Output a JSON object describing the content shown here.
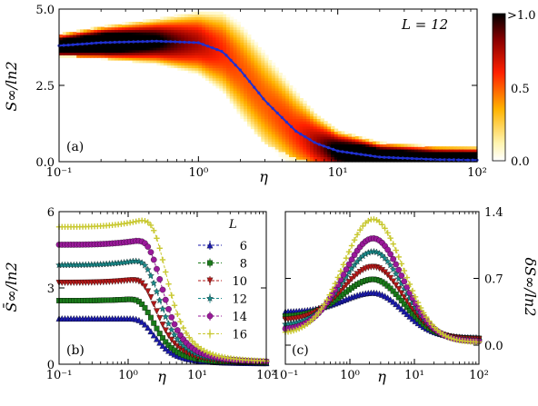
{
  "chart_data": [
    {
      "type": "heatmap",
      "panel_label": "(a)",
      "annotation": "L = 12",
      "xlabel": "η",
      "ylabel": "S∞/ln2",
      "xscale": "log",
      "xlim": [
        0.1,
        100
      ],
      "ylim": [
        0,
        5
      ],
      "x_tick_labels": [
        "10⁻¹",
        "10⁰",
        "10¹",
        "10²"
      ],
      "y_tick_labels": [
        "0.0",
        "2.5",
        "5.0"
      ],
      "colorbar": {
        "ticks": [
          "0.0",
          "0.5",
          ">1.0"
        ],
        "range": [
          0,
          1
        ]
      },
      "mean_curve": {
        "x": [
          0.1,
          0.2,
          0.5,
          1.0,
          1.5,
          2.0,
          3.0,
          5.0,
          7.0,
          10.0,
          20.0,
          50.0,
          100.0
        ],
        "y": [
          3.8,
          3.9,
          3.95,
          3.9,
          3.6,
          3.0,
          2.0,
          1.0,
          0.6,
          0.35,
          0.15,
          0.07,
          0.05
        ]
      },
      "density": {
        "x": [
          0.1,
          0.2,
          0.5,
          1.0,
          1.5,
          2.0,
          3.0,
          5.0,
          7.0,
          10.0,
          20.0,
          50.0,
          100.0
        ],
        "upper_edge": [
          4.3,
          4.5,
          4.7,
          4.9,
          4.9,
          4.6,
          3.8,
          2.8,
          2.0,
          1.4,
          1.0,
          0.9,
          0.9
        ],
        "lower_edge": [
          3.5,
          3.4,
          3.2,
          2.8,
          2.2,
          1.5,
          0.6,
          0.1,
          0.0,
          0.0,
          0.0,
          0.0,
          0.0
        ]
      }
    },
    {
      "type": "line",
      "panel_label": "(b)",
      "xlabel": "η",
      "ylabel": "S̄∞/ln2",
      "xscale": "log",
      "xlim": [
        0.1,
        100
      ],
      "ylim": [
        0,
        6
      ],
      "x_tick_labels": [
        "10⁻¹",
        "10⁰",
        "10¹",
        "10²"
      ],
      "y_tick_labels": [
        "0",
        "3",
        "6"
      ],
      "legend_title": "L",
      "legend_position": "center",
      "series": [
        {
          "name": "6",
          "color": "#1a1aaa",
          "marker": "triangle",
          "plateau": 1.8,
          "peak": 1.8,
          "peak_eta": 1.0,
          "tail": 0.03
        },
        {
          "name": "8",
          "color": "#1a7a1a",
          "marker": "square",
          "plateau": 2.5,
          "peak": 2.55,
          "peak_eta": 1.0,
          "tail": 0.04
        },
        {
          "name": "10",
          "color": "#b01818",
          "marker": "triangle-down",
          "plateau": 3.2,
          "peak": 3.3,
          "peak_eta": 1.1,
          "tail": 0.05
        },
        {
          "name": "12",
          "color": "#1a8a8a",
          "marker": "star",
          "plateau": 3.9,
          "peak": 4.05,
          "peak_eta": 1.2,
          "tail": 0.05
        },
        {
          "name": "14",
          "color": "#9a1a9a",
          "marker": "circle",
          "plateau": 4.7,
          "peak": 4.85,
          "peak_eta": 1.3,
          "tail": 0.06
        },
        {
          "name": "16",
          "color": "#c8c830",
          "marker": "plus",
          "plateau": 5.4,
          "peak": 5.65,
          "peak_eta": 1.5,
          "tail": 0.07
        }
      ]
    },
    {
      "type": "line",
      "panel_label": "(c)",
      "xlabel": "η",
      "ylabel": "δS∞/ln2",
      "xscale": "log",
      "xlim": [
        0.1,
        100
      ],
      "ylim": [
        -0.2,
        1.4
      ],
      "x_tick_labels": [
        "10⁻¹",
        "10⁰",
        "10¹",
        "10²"
      ],
      "y_tick_labels": [
        "0.0",
        "0.7",
        "1.4"
      ],
      "series": [
        {
          "name": "6",
          "color": "#1a1aaa",
          "marker": "triangle",
          "base": 0.35,
          "peak": 0.55,
          "peak_eta": 2.3,
          "tail": 0.08
        },
        {
          "name": "8",
          "color": "#1a7a1a",
          "marker": "square",
          "base": 0.3,
          "peak": 0.69,
          "peak_eta": 2.3,
          "tail": 0.07
        },
        {
          "name": "10",
          "color": "#b01818",
          "marker": "triangle-down",
          "base": 0.26,
          "peak": 0.82,
          "peak_eta": 2.3,
          "tail": 0.06
        },
        {
          "name": "12",
          "color": "#1a8a8a",
          "marker": "star",
          "base": 0.21,
          "peak": 0.98,
          "peak_eta": 2.3,
          "tail": 0.05
        },
        {
          "name": "14",
          "color": "#9a1a9a",
          "marker": "circle",
          "base": 0.16,
          "peak": 1.12,
          "peak_eta": 2.3,
          "tail": 0.04
        },
        {
          "name": "16",
          "color": "#c8c830",
          "marker": "plus",
          "base": 0.12,
          "peak": 1.32,
          "peak_eta": 2.3,
          "tail": 0.03
        }
      ]
    }
  ]
}
